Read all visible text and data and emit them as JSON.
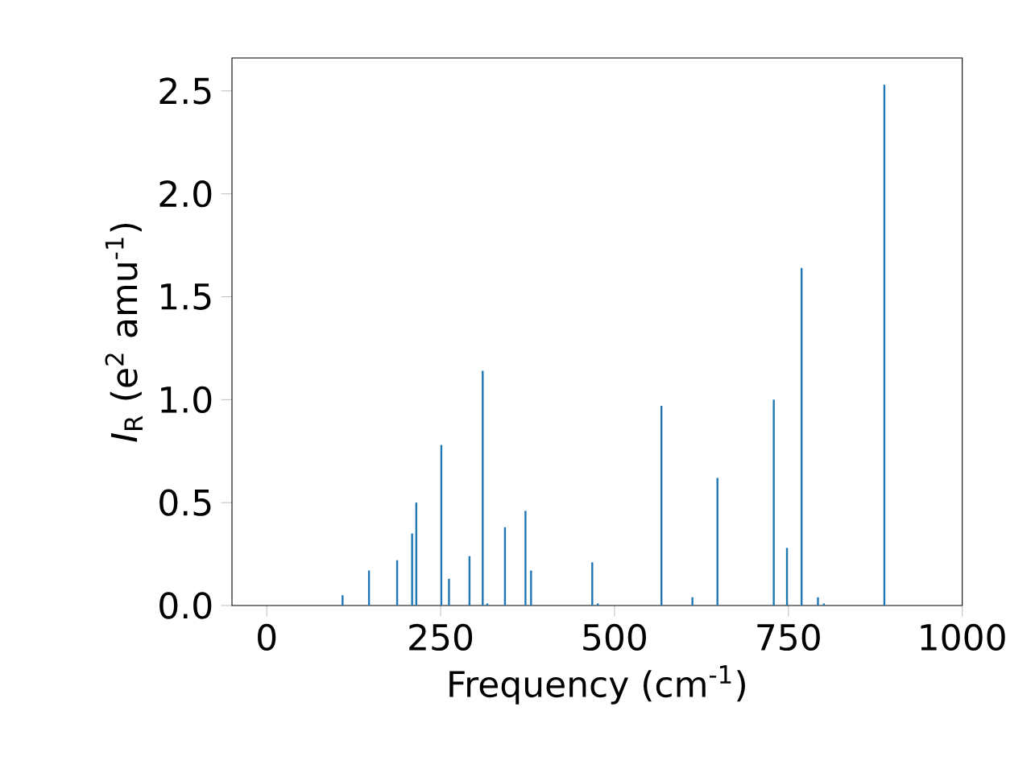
{
  "chart_data": {
    "type": "bar",
    "xlabel": "Frequency (cm$^{-1}$)",
    "ylabel": "*I*$_{R}$ (e$^{2}$ amu$^{-1}$)",
    "x": [
      109,
      147,
      187.5,
      209,
      215,
      251,
      262,
      291.5,
      310.5,
      317,
      342.5,
      372,
      380,
      468,
      476,
      567.5,
      612,
      648,
      729,
      748,
      769,
      792.5,
      801,
      888
    ],
    "values": [
      0.05,
      0.17,
      0.22,
      0.35,
      0.5,
      0.78,
      0.13,
      0.24,
      1.14,
      0.01,
      0.38,
      0.46,
      0.17,
      0.21,
      0.01,
      0.97,
      0.04,
      0.62,
      1.0,
      0.28,
      1.64,
      0.04,
      0.01,
      2.53
    ],
    "color": "#1f77b4",
    "xlim": [
      -50,
      1000
    ],
    "ylim": [
      0,
      2.66
    ],
    "xticks": [
      0,
      250,
      500,
      750,
      1000
    ],
    "yticks": [
      {
        "value": 0,
        "label": "0.0"
      },
      0.5,
      {
        "value": 1,
        "label": "1.0"
      },
      1.5,
      {
        "value": 2,
        "label": "2.0"
      },
      2.5
    ]
  }
}
